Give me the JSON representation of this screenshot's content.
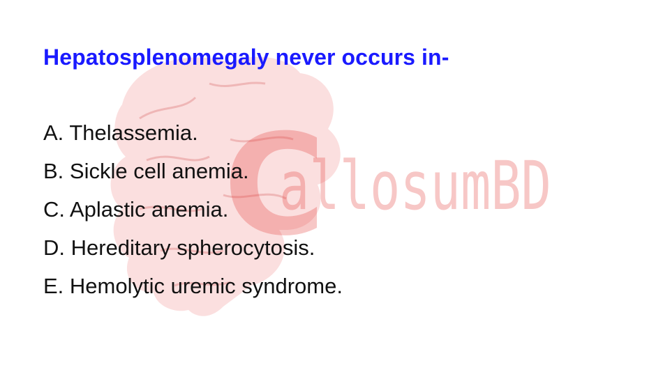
{
  "question": "Hepatosplenomegaly never occurs in-",
  "options": [
    "A. Thelassemia.",
    "B. Sickle cell anemia.",
    "C. Aplastic anemia.",
    "D. Hereditary spherocytosis.",
    "E. Hemolytic uremic syndrome."
  ],
  "watermark": {
    "text": "CallosumBD",
    "color": "#e53935"
  },
  "colors": {
    "question": "#1a1aff",
    "options": "#111111"
  }
}
